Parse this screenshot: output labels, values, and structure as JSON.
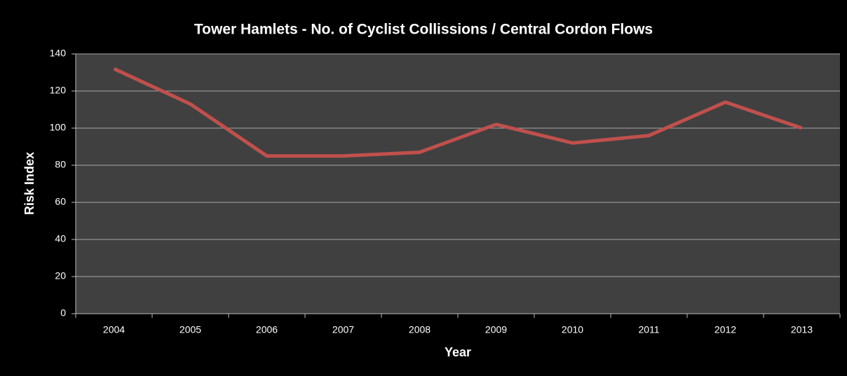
{
  "chart_data": {
    "type": "line",
    "title": "Tower Hamlets - No. of Cyclist Collissions / Central Cordon Flows",
    "x_label": "Year",
    "y_label": "Risk Index",
    "categories": [
      "2004",
      "2005",
      "2006",
      "2007",
      "2008",
      "2009",
      "2010",
      "2011",
      "2012",
      "2013"
    ],
    "values": [
      132,
      113,
      85,
      85,
      87,
      102,
      92,
      96,
      114,
      100
    ],
    "color": "#c0504d",
    "ylim": [
      0,
      140
    ],
    "yticks": [
      0,
      20,
      40,
      60,
      80,
      100,
      120,
      140
    ],
    "grid": true
  }
}
